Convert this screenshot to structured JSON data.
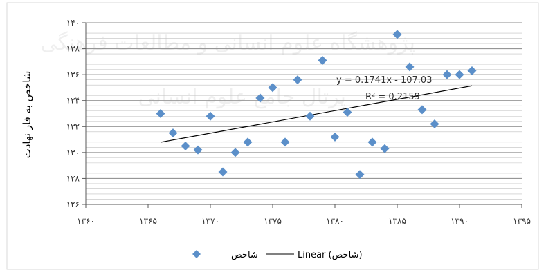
{
  "chart_data": {
    "type": "scatter",
    "title": "",
    "xlabel": "",
    "ylabel": "شاخص به فار نهادت",
    "xlim": [
      1360,
      1395
    ],
    "ylim": [
      126,
      140
    ],
    "x_ticks": [
      {
        "value": 1360,
        "label": "۱۳۶۰"
      },
      {
        "value": 1365,
        "label": "۱۳۶۵"
      },
      {
        "value": 1370,
        "label": "۱۳۷۰"
      },
      {
        "value": 1375,
        "label": "۱۳۷۵"
      },
      {
        "value": 1380,
        "label": "۱۳۸۰"
      },
      {
        "value": 1385,
        "label": "۱۳۸۵"
      },
      {
        "value": 1390,
        "label": "۱۳۹۰"
      },
      {
        "value": 1395,
        "label": "۱۳۹۵"
      }
    ],
    "y_ticks": [
      {
        "value": 126,
        "label": "۱۲۶"
      },
      {
        "value": 128,
        "label": "۱۲۸"
      },
      {
        "value": 130,
        "label": "۱۳۰"
      },
      {
        "value": 132,
        "label": "۱۳۲"
      },
      {
        "value": 134,
        "label": "۱۳۴"
      },
      {
        "value": 136,
        "label": "۱۳۶"
      },
      {
        "value": 138,
        "label": "۱۳۸"
      },
      {
        "value": 140,
        "label": "۱۴۰"
      }
    ],
    "grid": true,
    "legend_position": "bottom",
    "series": [
      {
        "name": "شاخص",
        "color": "#5b8fc9",
        "marker": "diamond",
        "points": [
          {
            "x": 1366,
            "y": 133.0
          },
          {
            "x": 1367,
            "y": 131.5
          },
          {
            "x": 1368,
            "y": 130.5
          },
          {
            "x": 1369,
            "y": 130.2
          },
          {
            "x": 1370,
            "y": 132.8
          },
          {
            "x": 1371,
            "y": 128.5
          },
          {
            "x": 1372,
            "y": 130.0
          },
          {
            "x": 1373,
            "y": 130.8
          },
          {
            "x": 1374,
            "y": 134.2
          },
          {
            "x": 1375,
            "y": 135.0
          },
          {
            "x": 1376,
            "y": 130.8
          },
          {
            "x": 1377,
            "y": 135.6
          },
          {
            "x": 1378,
            "y": 132.8
          },
          {
            "x": 1379,
            "y": 137.1
          },
          {
            "x": 1380,
            "y": 131.2
          },
          {
            "x": 1381,
            "y": 133.1
          },
          {
            "x": 1382,
            "y": 128.3
          },
          {
            "x": 1383,
            "y": 130.8
          },
          {
            "x": 1384,
            "y": 130.3
          },
          {
            "x": 1385,
            "y": 139.1
          },
          {
            "x": 1386,
            "y": 136.6
          },
          {
            "x": 1387,
            "y": 133.3
          },
          {
            "x": 1388,
            "y": 132.2
          },
          {
            "x": 1389,
            "y": 136.0
          },
          {
            "x": 1390,
            "y": 136.0
          },
          {
            "x": 1391,
            "y": 136.3
          }
        ]
      }
    ],
    "trendline": {
      "name": "Linear (شاخص)",
      "type": "linear",
      "slope": 0.1741,
      "intercept": -107.03,
      "x_range": [
        1366,
        1391
      ],
      "color": "#000000"
    },
    "annotations": {
      "equation": "y = 0.1741x - 107.03",
      "r_squared": "R² = 0.2159"
    },
    "legend": [
      {
        "label": "شاخص",
        "kind": "marker"
      },
      {
        "label": "Linear (شاخص)",
        "kind": "line"
      }
    ]
  },
  "watermark": {
    "line1": "پژوهشگاه علوم انسانی و مطالعات فرهنگی",
    "line2": "پرتال جامع علوم انسانی"
  }
}
